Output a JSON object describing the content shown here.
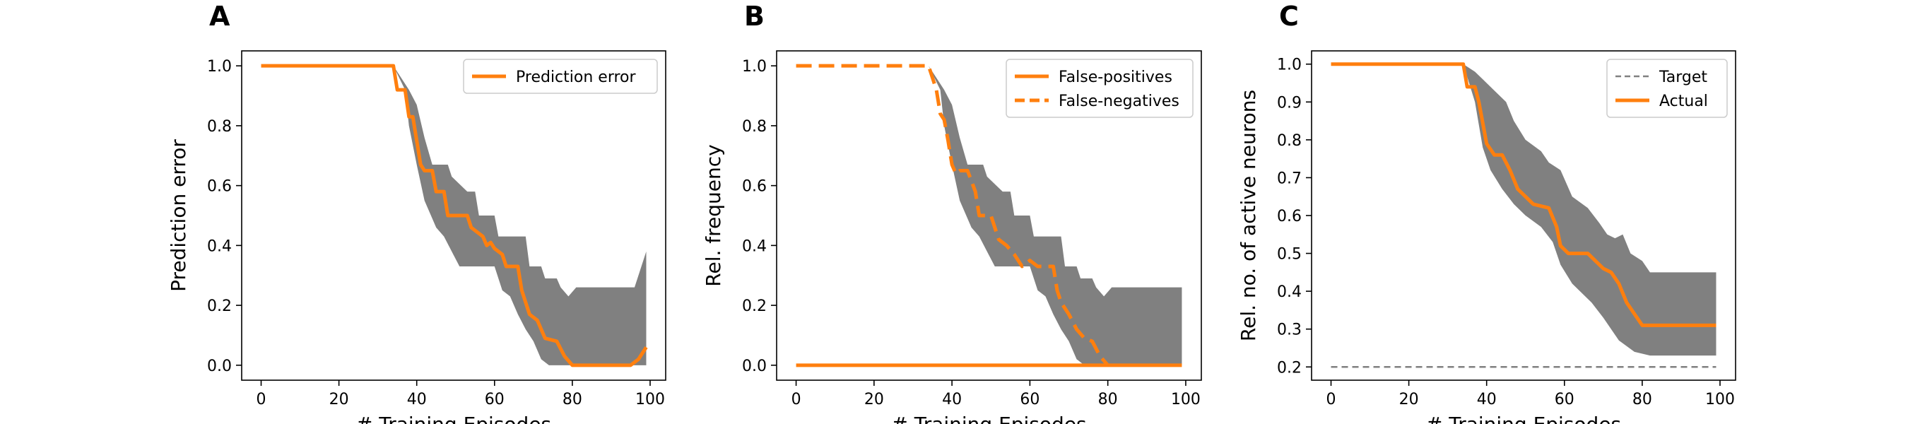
{
  "chart_data": [
    {
      "panel": "A",
      "type": "line",
      "xlabel": "# Training Episodes",
      "ylabel": "Prediction error",
      "xlim": [
        -5,
        104
      ],
      "ylim": [
        -0.05,
        1.05
      ],
      "xticks": [
        0,
        20,
        40,
        60,
        80,
        100
      ],
      "yticks": [
        0.0,
        0.2,
        0.4,
        0.6,
        0.8,
        1.0
      ],
      "ytick_labels": [
        "0.0",
        "0.2",
        "0.4",
        "0.6",
        "0.8",
        "1.0"
      ],
      "legend": "top-right",
      "series": [
        {
          "name": "Prediction error",
          "style": "solid",
          "color": "#ff7f0e",
          "points": [
            [
              0,
              1.0
            ],
            [
              34,
              1.0
            ],
            [
              35,
              0.92
            ],
            [
              37,
              0.92
            ],
            [
              38,
              0.83
            ],
            [
              39,
              0.83
            ],
            [
              40,
              0.75
            ],
            [
              41,
              0.67
            ],
            [
              42,
              0.65
            ],
            [
              44,
              0.65
            ],
            [
              45,
              0.58
            ],
            [
              47,
              0.58
            ],
            [
              48,
              0.5
            ],
            [
              53,
              0.5
            ],
            [
              54,
              0.46
            ],
            [
              57,
              0.43
            ],
            [
              58,
              0.4
            ],
            [
              59,
              0.41
            ],
            [
              60,
              0.39
            ],
            [
              62,
              0.37
            ],
            [
              63,
              0.33
            ],
            [
              66,
              0.33
            ],
            [
              67,
              0.25
            ],
            [
              68,
              0.21
            ],
            [
              69,
              0.17
            ],
            [
              71,
              0.15
            ],
            [
              72,
              0.12
            ],
            [
              73,
              0.09
            ],
            [
              76,
              0.08
            ],
            [
              78,
              0.03
            ],
            [
              80,
              0.0
            ],
            [
              95,
              0.0
            ],
            [
              97,
              0.02
            ],
            [
              99,
              0.06
            ]
          ]
        }
      ],
      "band": {
        "color": "#808080",
        "upper": [
          [
            0,
            1.0
          ],
          [
            34,
            1.0
          ],
          [
            38,
            0.92
          ],
          [
            40,
            0.87
          ],
          [
            42,
            0.76
          ],
          [
            44,
            0.67
          ],
          [
            48,
            0.67
          ],
          [
            49,
            0.63
          ],
          [
            53,
            0.58
          ],
          [
            55,
            0.58
          ],
          [
            56,
            0.5
          ],
          [
            60,
            0.5
          ],
          [
            61,
            0.43
          ],
          [
            68,
            0.43
          ],
          [
            69,
            0.33
          ],
          [
            72,
            0.33
          ],
          [
            73,
            0.29
          ],
          [
            76,
            0.29
          ],
          [
            77,
            0.26
          ],
          [
            79,
            0.23
          ],
          [
            81,
            0.26
          ],
          [
            96,
            0.26
          ],
          [
            99,
            0.38
          ]
        ],
        "lower": [
          [
            0,
            1.0
          ],
          [
            34,
            1.0
          ],
          [
            37,
            0.92
          ],
          [
            38,
            0.8
          ],
          [
            40,
            0.67
          ],
          [
            42,
            0.55
          ],
          [
            44,
            0.49
          ],
          [
            45,
            0.46
          ],
          [
            47,
            0.43
          ],
          [
            49,
            0.38
          ],
          [
            51,
            0.33
          ],
          [
            60,
            0.33
          ],
          [
            62,
            0.25
          ],
          [
            64,
            0.23
          ],
          [
            66,
            0.17
          ],
          [
            68,
            0.12
          ],
          [
            70,
            0.08
          ],
          [
            72,
            0.02
          ],
          [
            74,
            0.0
          ],
          [
            99,
            0.0
          ]
        ]
      }
    },
    {
      "panel": "B",
      "type": "line",
      "xlabel": "# Training Episodes",
      "ylabel": "Rel. frequency",
      "xlim": [
        -5,
        104
      ],
      "ylim": [
        -0.05,
        1.05
      ],
      "xticks": [
        0,
        20,
        40,
        60,
        80,
        100
      ],
      "yticks": [
        0.0,
        0.2,
        0.4,
        0.6,
        0.8,
        1.0
      ],
      "ytick_labels": [
        "0.0",
        "0.2",
        "0.4",
        "0.6",
        "0.8",
        "1.0"
      ],
      "legend": "top-right",
      "series": [
        {
          "name": "False-positives",
          "style": "solid",
          "color": "#ff7f0e",
          "points": [
            [
              0,
              0.0
            ],
            [
              99,
              0.0
            ]
          ]
        },
        {
          "name": "False-negatives",
          "style": "dashed",
          "color": "#ff7f0e",
          "points": [
            [
              0,
              1.0
            ],
            [
              34,
              1.0
            ],
            [
              36,
              0.92
            ],
            [
              37,
              0.84
            ],
            [
              38,
              0.82
            ],
            [
              39,
              0.75
            ],
            [
              40,
              0.67
            ],
            [
              41,
              0.64
            ],
            [
              42,
              0.65
            ],
            [
              44,
              0.65
            ],
            [
              46,
              0.58
            ],
            [
              47,
              0.5
            ],
            [
              50,
              0.5
            ],
            [
              52,
              0.42
            ],
            [
              54,
              0.4
            ],
            [
              56,
              0.37
            ],
            [
              58,
              0.33
            ],
            [
              60,
              0.35
            ],
            [
              62,
              0.33
            ],
            [
              66,
              0.33
            ],
            [
              67,
              0.25
            ],
            [
              68,
              0.21
            ],
            [
              70,
              0.17
            ],
            [
              72,
              0.12
            ],
            [
              74,
              0.09
            ],
            [
              76,
              0.08
            ],
            [
              78,
              0.03
            ],
            [
              80,
              0.0
            ]
          ]
        }
      ],
      "band": {
        "color": "#808080",
        "upper": [
          [
            0,
            1.0
          ],
          [
            34,
            1.0
          ],
          [
            38,
            0.92
          ],
          [
            40,
            0.87
          ],
          [
            42,
            0.76
          ],
          [
            44,
            0.67
          ],
          [
            48,
            0.67
          ],
          [
            49,
            0.63
          ],
          [
            53,
            0.58
          ],
          [
            55,
            0.58
          ],
          [
            56,
            0.5
          ],
          [
            60,
            0.5
          ],
          [
            61,
            0.43
          ],
          [
            68,
            0.43
          ],
          [
            69,
            0.33
          ],
          [
            72,
            0.33
          ],
          [
            73,
            0.29
          ],
          [
            76,
            0.29
          ],
          [
            77,
            0.26
          ],
          [
            79,
            0.23
          ],
          [
            81,
            0.26
          ],
          [
            98,
            0.26
          ],
          [
            99,
            0.26
          ]
        ],
        "lower": [
          [
            0,
            1.0
          ],
          [
            34,
            1.0
          ],
          [
            37,
            0.92
          ],
          [
            38,
            0.8
          ],
          [
            40,
            0.67
          ],
          [
            42,
            0.55
          ],
          [
            44,
            0.49
          ],
          [
            45,
            0.46
          ],
          [
            47,
            0.43
          ],
          [
            49,
            0.38
          ],
          [
            51,
            0.33
          ],
          [
            60,
            0.33
          ],
          [
            62,
            0.25
          ],
          [
            64,
            0.23
          ],
          [
            66,
            0.17
          ],
          [
            68,
            0.12
          ],
          [
            70,
            0.08
          ],
          [
            72,
            0.02
          ],
          [
            74,
            0.0
          ],
          [
            99,
            0.0
          ]
        ]
      }
    },
    {
      "panel": "C",
      "type": "line",
      "xlabel": "# Training Episodes",
      "ylabel": "Rel. no. of active neurons",
      "xlim": [
        -5,
        104
      ],
      "ylim": [
        0.165,
        1.035
      ],
      "xticks": [
        0,
        20,
        40,
        60,
        80,
        100
      ],
      "yticks": [
        0.2,
        0.3,
        0.4,
        0.5,
        0.6,
        0.7,
        0.8,
        0.9,
        1.0
      ],
      "ytick_labels": [
        "0.2",
        "0.3",
        "0.4",
        "0.5",
        "0.6",
        "0.7",
        "0.8",
        "0.9",
        "1.0"
      ],
      "legend": "top-right",
      "series": [
        {
          "name": "Target",
          "style": "dashed-thin",
          "color": "#808080",
          "points": [
            [
              0,
              0.2
            ],
            [
              99,
              0.2
            ]
          ]
        },
        {
          "name": "Actual",
          "style": "solid",
          "color": "#ff7f0e",
          "points": [
            [
              0,
              1.0
            ],
            [
              34,
              1.0
            ],
            [
              35,
              0.94
            ],
            [
              37,
              0.94
            ],
            [
              38,
              0.9
            ],
            [
              40,
              0.79
            ],
            [
              42,
              0.76
            ],
            [
              44,
              0.76
            ],
            [
              46,
              0.72
            ],
            [
              48,
              0.67
            ],
            [
              50,
              0.65
            ],
            [
              52,
              0.63
            ],
            [
              56,
              0.62
            ],
            [
              58,
              0.57
            ],
            [
              59,
              0.52
            ],
            [
              61,
              0.5
            ],
            [
              66,
              0.5
            ],
            [
              68,
              0.48
            ],
            [
              70,
              0.46
            ],
            [
              72,
              0.45
            ],
            [
              74,
              0.42
            ],
            [
              76,
              0.37
            ],
            [
              78,
              0.34
            ],
            [
              80,
              0.31
            ],
            [
              99,
              0.31
            ]
          ]
        }
      ],
      "band": {
        "color": "#808080",
        "upper": [
          [
            0,
            1.0
          ],
          [
            34,
            1.0
          ],
          [
            37,
            0.98
          ],
          [
            39,
            0.96
          ],
          [
            42,
            0.93
          ],
          [
            45,
            0.9
          ],
          [
            47,
            0.85
          ],
          [
            50,
            0.8
          ],
          [
            54,
            0.77
          ],
          [
            56,
            0.74
          ],
          [
            59,
            0.72
          ],
          [
            62,
            0.65
          ],
          [
            66,
            0.62
          ],
          [
            69,
            0.58
          ],
          [
            71,
            0.55
          ],
          [
            73,
            0.54
          ],
          [
            75,
            0.55
          ],
          [
            77,
            0.5
          ],
          [
            80,
            0.48
          ],
          [
            82,
            0.45
          ],
          [
            99,
            0.45
          ]
        ],
        "lower": [
          [
            0,
            1.0
          ],
          [
            34,
            1.0
          ],
          [
            37,
            0.9
          ],
          [
            39,
            0.78
          ],
          [
            41,
            0.72
          ],
          [
            44,
            0.67
          ],
          [
            47,
            0.63
          ],
          [
            50,
            0.6
          ],
          [
            54,
            0.57
          ],
          [
            57,
            0.53
          ],
          [
            59,
            0.47
          ],
          [
            62,
            0.42
          ],
          [
            65,
            0.39
          ],
          [
            67,
            0.37
          ],
          [
            70,
            0.33
          ],
          [
            74,
            0.27
          ],
          [
            78,
            0.24
          ],
          [
            82,
            0.23
          ],
          [
            99,
            0.23
          ]
        ]
      }
    }
  ]
}
